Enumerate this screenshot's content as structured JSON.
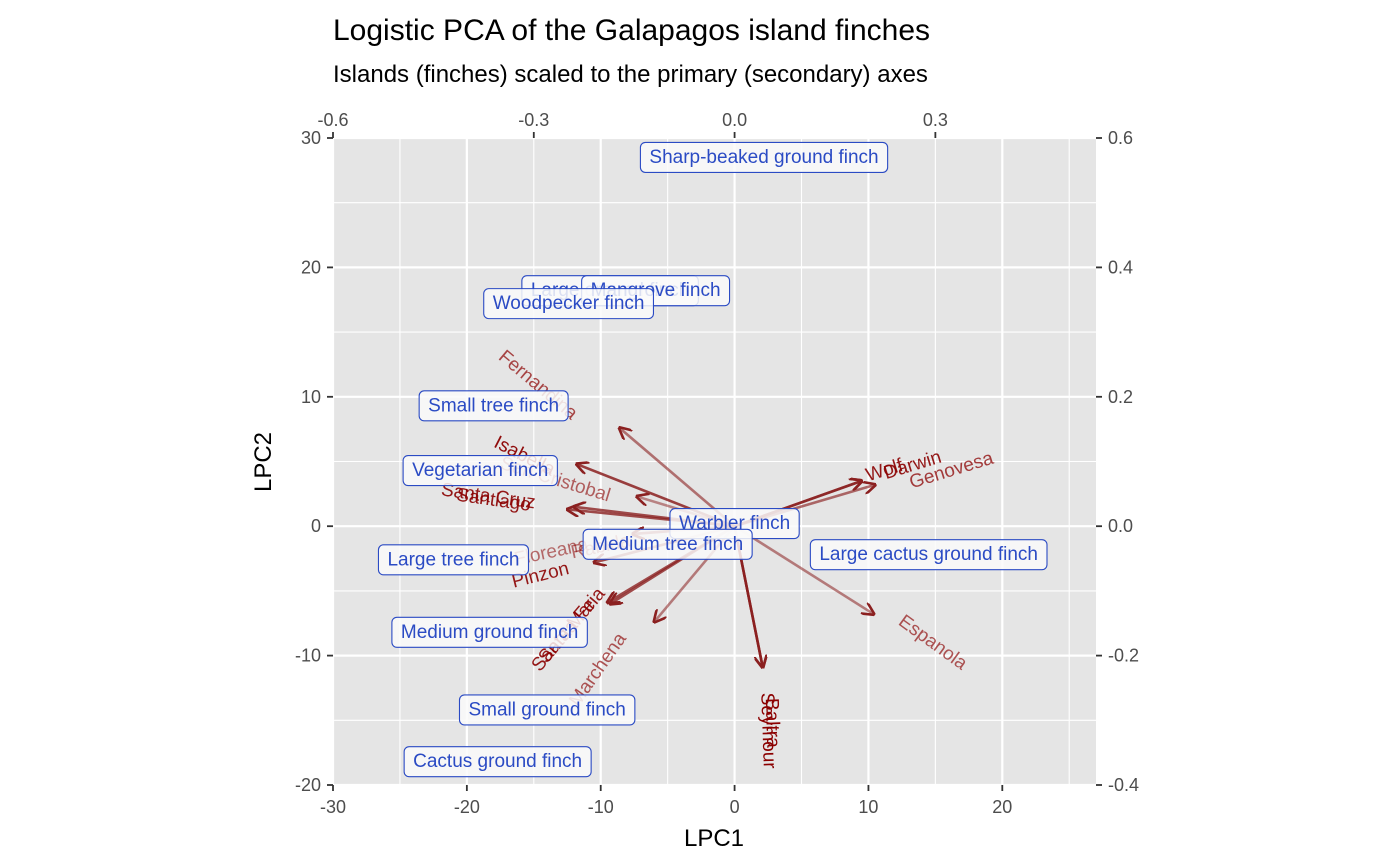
{
  "chart_data": {
    "type": "scatter",
    "title": "Logistic PCA of the Galapagos island finches",
    "subtitle": "Islands (finches) scaled to the primary (secondary) axes",
    "xlabel": "LPC1",
    "ylabel": "LPC2",
    "xlim": [
      -30,
      27
    ],
    "ylim": [
      -20,
      30
    ],
    "x_ticks": [
      "-30",
      "-20",
      "-10",
      "0",
      "10",
      "20"
    ],
    "y_ticks": [
      "-20",
      "-10",
      "0",
      "10",
      "20",
      "30"
    ],
    "secondary_xlim": [
      -0.6,
      0.54
    ],
    "secondary_ylim": [
      -0.4,
      0.6
    ],
    "secondary_x_ticks": [
      "-0.6",
      "-0.3",
      "0.0",
      "0.3"
    ],
    "secondary_y_ticks": [
      "-0.4",
      "-0.2",
      "0.0",
      "0.2",
      "0.4",
      "0.6"
    ],
    "grid": true,
    "colors": {
      "panel": "#e5e5e5",
      "grid": "#ffffff",
      "finch_text": "#2b4bc4",
      "finch_box_fill": "#fafafa",
      "island_text": "#8b0000",
      "arrow": "#8b2020"
    },
    "finches": [
      {
        "label": "Sharp-beaked ground finch",
        "x": 2.2,
        "y": 28.5
      },
      {
        "label": "Large ground finch",
        "x": -9.3,
        "y": 18.2
      },
      {
        "label": "Mangrove finch",
        "x": -5.9,
        "y": 18.2
      },
      {
        "label": "Woodpecker finch",
        "x": -12.4,
        "y": 17.2
      },
      {
        "label": "Small tree finch",
        "x": -18.0,
        "y": 9.3
      },
      {
        "label": "Vegetarian finch",
        "x": -19.0,
        "y": 4.3
      },
      {
        "label": "Warbler finch",
        "x": 0.0,
        "y": 0.2
      },
      {
        "label": "Medium tree finch",
        "x": -5.0,
        "y": -1.4
      },
      {
        "label": "Large cactus ground finch",
        "x": 14.5,
        "y": -2.2
      },
      {
        "label": "Large tree finch",
        "x": -21.0,
        "y": -2.6
      },
      {
        "label": "Medium ground finch",
        "x": -18.3,
        "y": -8.2
      },
      {
        "label": "Small ground finch",
        "x": -14.0,
        "y": -14.2
      },
      {
        "label": "Cactus ground finch",
        "x": -17.7,
        "y": -18.2
      }
    ],
    "islands": [
      {
        "label": "Fernandina",
        "x": -8.6,
        "y": 7.6,
        "alpha": 0.6,
        "tx": -14.7,
        "ty": 10.9,
        "rot": 40
      },
      {
        "label": "Isabella",
        "x": -11.8,
        "y": 4.8,
        "alpha": 0.85,
        "tx": -15.7,
        "ty": 5.4,
        "rot": 27
      },
      {
        "label": "San Cristobal",
        "x": -7.3,
        "y": 2.3,
        "alpha": 0.5,
        "tx": -13.4,
        "ty": 3.6,
        "rot": 17
      },
      {
        "label": "Santiago",
        "x": -12.0,
        "y": 1.5,
        "alpha": 0.8,
        "tx": -18.0,
        "ty": 2.0,
        "rot": 8
      },
      {
        "label": "Santa Cruz",
        "x": -12.5,
        "y": 1.3,
        "alpha": 0.8,
        "tx": -18.4,
        "ty": 2.3,
        "rot": 8
      },
      {
        "label": "Floreana",
        "x": -7.6,
        "y": -0.6,
        "alpha": 0.45,
        "tx": -13.7,
        "ty": -2.0,
        "rot": -12
      },
      {
        "label": "Rabida",
        "x": -7.6,
        "y": -0.6,
        "alpha": 0.45,
        "tx": -10.0,
        "ty": -1.6,
        "rot": -12
      },
      {
        "label": "Pinzon",
        "x": -10.5,
        "y": -2.8,
        "alpha": 0.8,
        "tx": -14.5,
        "ty": -3.8,
        "rot": -14
      },
      {
        "label": "Santa Fe",
        "x": -9.5,
        "y": -5.9,
        "alpha": 0.8,
        "tx": -12.5,
        "ty": -8.1,
        "rot": -50
      },
      {
        "label": "Santa Maria",
        "x": -9.3,
        "y": -6.0,
        "alpha": 0.8,
        "tx": -12.4,
        "ty": -8.0,
        "rot": -50
      },
      {
        "label": "Marchena",
        "x": -6.0,
        "y": -7.4,
        "alpha": 0.55,
        "tx": -10.2,
        "ty": -11.1,
        "rot": -55
      },
      {
        "label": "Baltra",
        "x": 2.1,
        "y": -10.9,
        "alpha": 0.95,
        "tx": 2.8,
        "ty": -15.2,
        "rot": 88
      },
      {
        "label": "Seymour",
        "x": 2.1,
        "y": -10.9,
        "alpha": 0.95,
        "tx": 2.5,
        "ty": -15.8,
        "rot": 88
      },
      {
        "label": "Espanola",
        "x": 10.4,
        "y": -6.8,
        "alpha": 0.55,
        "tx": 14.8,
        "ty": -9.0,
        "rot": 36
      },
      {
        "label": "Genovesa",
        "x": 10.5,
        "y": 3.2,
        "alpha": 0.65,
        "tx": 16.2,
        "ty": 4.3,
        "rot": -17
      },
      {
        "label": "Darwin",
        "x": 9.5,
        "y": 3.5,
        "alpha": 0.8,
        "tx": 13.3,
        "ty": 4.7,
        "rot": -17
      },
      {
        "label": "Wolf",
        "x": 9.5,
        "y": 3.5,
        "alpha": 0.8,
        "tx": 11.2,
        "ty": 4.3,
        "rot": -17
      }
    ]
  }
}
